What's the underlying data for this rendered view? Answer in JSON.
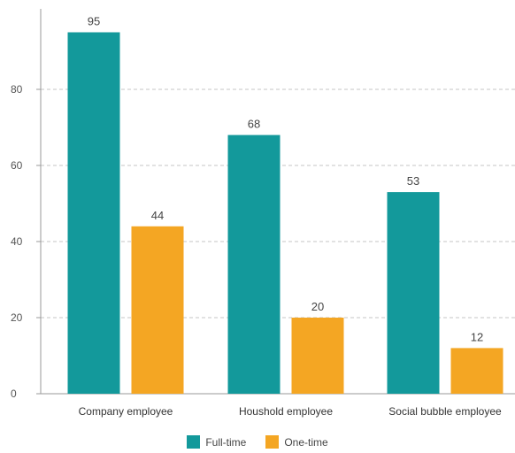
{
  "chart_data": {
    "type": "bar",
    "categories": [
      "Company employee",
      "Houshold employee",
      "Social bubble employee"
    ],
    "series": [
      {
        "name": "Full-time",
        "values": [
          95,
          68,
          53
        ],
        "color": "#13999b"
      },
      {
        "name": "One-time",
        "values": [
          44,
          20,
          12
        ],
        "color": "#f4a623"
      }
    ],
    "y_ticks": [
      0,
      20,
      40,
      60,
      80
    ],
    "ylim": [
      0,
      100
    ],
    "grid": true,
    "legend_position": "bottom"
  }
}
